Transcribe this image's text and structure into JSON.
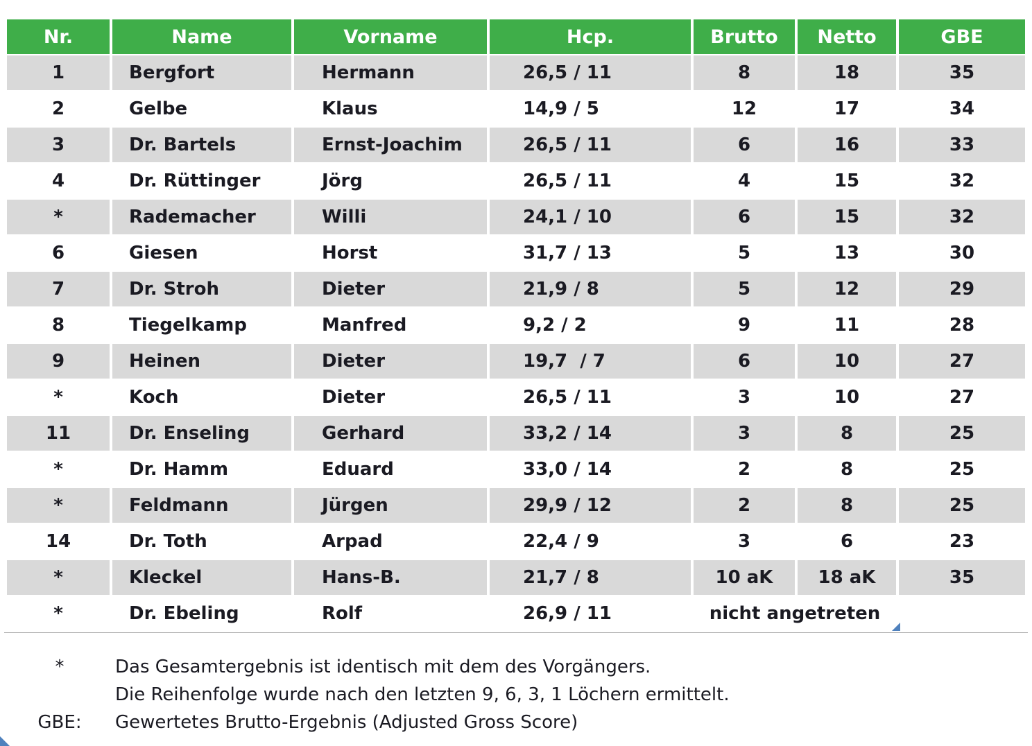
{
  "table": {
    "headers": [
      "Nr.",
      "Name",
      "Vorname",
      "Hcp.",
      "Brutto",
      "Netto",
      "GBE"
    ],
    "rows": [
      {
        "nr": "1",
        "name": "Bergfort",
        "vorname": "Hermann",
        "hcp": "26,5 / 11",
        "brutto": "8",
        "netto": "18",
        "gbe": "35"
      },
      {
        "nr": "2",
        "name": "Gelbe",
        "vorname": "Klaus",
        "hcp": "14,9 / 5",
        "brutto": "12",
        "netto": "17",
        "gbe": "34"
      },
      {
        "nr": "3",
        "name": "Dr. Bartels",
        "vorname": "Ernst-Joachim",
        "hcp": "26,5 / 11",
        "brutto": "6",
        "netto": "16",
        "gbe": "33"
      },
      {
        "nr": "4",
        "name": "Dr. Rüttinger",
        "vorname": "Jörg",
        "hcp": "26,5 / 11",
        "brutto": "4",
        "netto": "15",
        "gbe": "32"
      },
      {
        "nr": "*",
        "name": "Rademacher",
        "vorname": "Willi",
        "hcp": "24,1 / 10",
        "brutto": "6",
        "netto": "15",
        "gbe": "32"
      },
      {
        "nr": "6",
        "name": "Giesen",
        "vorname": "Horst",
        "hcp": "31,7 / 13",
        "brutto": "5",
        "netto": "13",
        "gbe": "30"
      },
      {
        "nr": "7",
        "name": "Dr. Stroh",
        "vorname": "Dieter",
        "hcp": "21,9 / 8",
        "brutto": "5",
        "netto": "12",
        "gbe": "29"
      },
      {
        "nr": "8",
        "name": "Tiegelkamp",
        "vorname": "Manfred",
        "hcp": "9,2 / 2",
        "brutto": "9",
        "netto": "11",
        "gbe": "28"
      },
      {
        "nr": "9",
        "name": "Heinen",
        "vorname": "Dieter",
        "hcp": "19,7  / 7",
        "brutto": "6",
        "netto": "10",
        "gbe": "27"
      },
      {
        "nr": "*",
        "name": "Koch",
        "vorname": "Dieter",
        "hcp": "26,5 / 11",
        "brutto": "3",
        "netto": "10",
        "gbe": "27"
      },
      {
        "nr": "11",
        "name": "Dr. Enseling",
        "vorname": "Gerhard",
        "hcp": "33,2 / 14",
        "brutto": "3",
        "netto": "8",
        "gbe": "25"
      },
      {
        "nr": "*",
        "name": "Dr. Hamm",
        "vorname": "Eduard",
        "hcp": "33,0 / 14",
        "brutto": "2",
        "netto": "8",
        "gbe": "25"
      },
      {
        "nr": "*",
        "name": "Feldmann",
        "vorname": "Jürgen",
        "hcp": "29,9 / 12",
        "brutto": "2",
        "netto": "8",
        "gbe": "25"
      },
      {
        "nr": "14",
        "name": "Dr. Toth",
        "vorname": "Arpad",
        "hcp": "22,4 / 9",
        "brutto": "3",
        "netto": "6",
        "gbe": "23"
      },
      {
        "nr": "*",
        "name": "Kleckel",
        "vorname": "Hans-B.",
        "hcp": "21,7 / 8",
        "brutto": "10 aK",
        "netto": "18 aK",
        "gbe": "35"
      },
      {
        "nr": "*",
        "name": "Dr. Ebeling",
        "vorname": "Rolf",
        "hcp": "26,9 / 11",
        "merged": "nicht angetreten",
        "gbe": ""
      }
    ]
  },
  "notes": [
    {
      "symbol": "*",
      "text": "Das Gesamtergebnis ist identisch mit dem des Vorgängers."
    },
    {
      "symbol": "",
      "text": "Die Reihenfolge wurde nach den letzten 9, 6, 3, 1 Löchern ermittelt."
    },
    {
      "symbol": "GBE:",
      "text": "Gewertetes Brutto-Ergebnis (Adjusted Gross Score)"
    }
  ],
  "colors": {
    "header_bg": "#3fae49",
    "header_text": "#ffffff",
    "row_alt_bg": "#d9d9d9",
    "text": "#1a1a22",
    "accent_blue": "#4f81bd"
  }
}
